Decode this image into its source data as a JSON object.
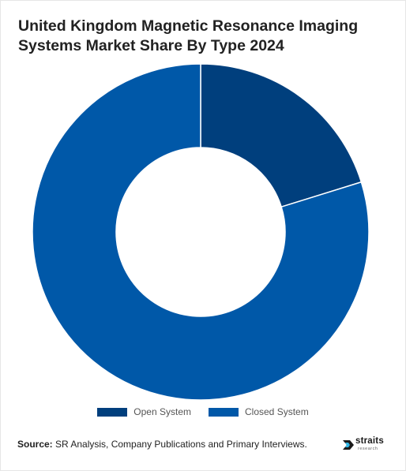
{
  "chart_title_line1": "United Kingdom Magnetic Resonance Imaging",
  "chart_title_line2": "Systems Market Share By Type 2024",
  "source_label": "Source:",
  "source_text": " SR Analysis, Company Publications and Primary Interviews.",
  "logo": {
    "name": "straits",
    "tagline": "research",
    "icon": "straits-arrow-icon"
  },
  "colors": {
    "open_system": "#003f7d",
    "closed_system": "#0058a8",
    "background": "#ffffff"
  },
  "chart_data": {
    "type": "pie",
    "style": "donut",
    "title": "United Kingdom Magnetic Resonance Imaging Systems Market Share By Type 2024",
    "categories": [
      "Open System",
      "Closed System"
    ],
    "values": [
      20.2,
      79.8
    ],
    "unit": "%",
    "legend_position": "bottom"
  }
}
